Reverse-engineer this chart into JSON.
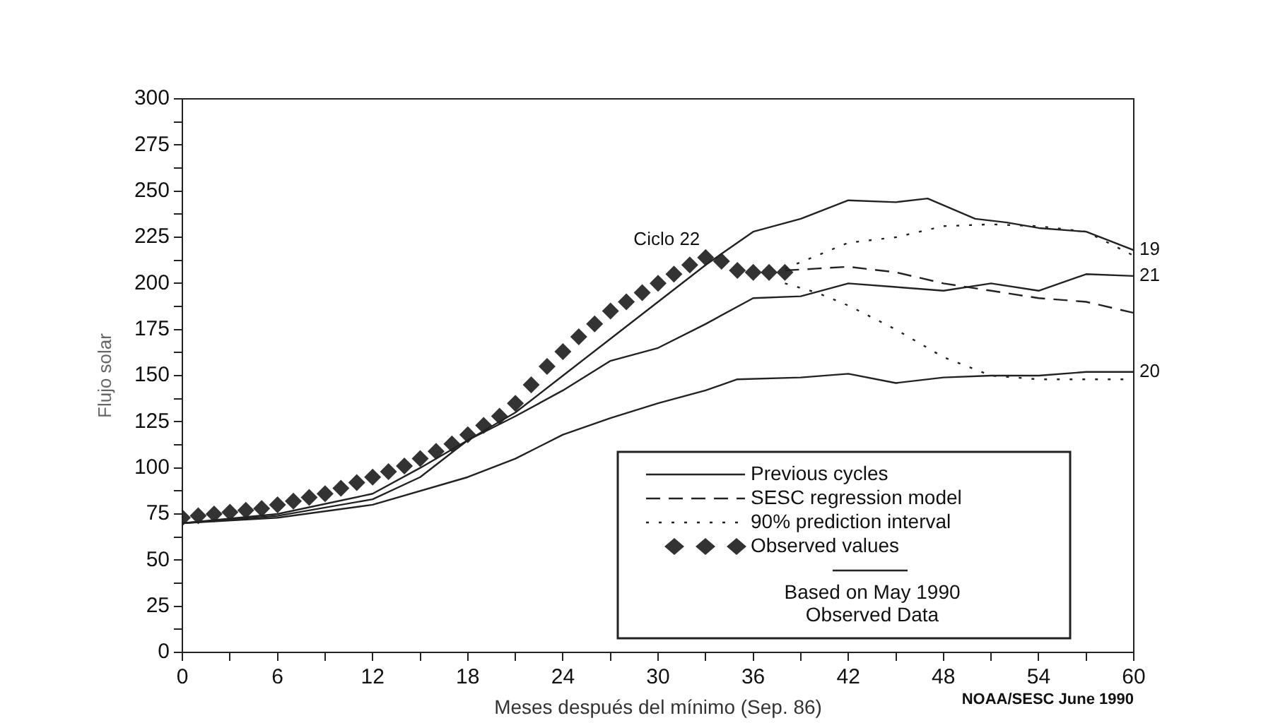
{
  "chart_data": {
    "type": "line",
    "xlabel": "Meses después del mínimo (Sep. 86)",
    "ylabel": "Flujo solar",
    "xlim": [
      0,
      60
    ],
    "ylim": [
      0,
      300
    ],
    "xticks": [
      0,
      {
        "value": 3,
        "label": null
      },
      6,
      {
        "value": 9,
        "label": null
      },
      12,
      {
        "value": 15,
        "label": null
      },
      18,
      {
        "value": 21,
        "label": null
      },
      24,
      {
        "value": 27,
        "label": null
      },
      30,
      {
        "value": 33,
        "label": null
      },
      36,
      {
        "value": 39,
        "label": null
      },
      42,
      {
        "value": 45,
        "label": null
      },
      48,
      {
        "value": 51,
        "label": null
      },
      54,
      {
        "value": 57,
        "label": null
      },
      60
    ],
    "yticks": [
      0,
      {
        "value": 12.5,
        "label": null
      },
      25,
      {
        "value": 37.5,
        "label": null
      },
      50,
      {
        "value": 62.5,
        "label": null
      },
      75,
      {
        "value": 87.5,
        "label": null
      },
      100,
      {
        "value": 112.5,
        "label": null
      },
      125,
      {
        "value": 137.5,
        "label": null
      },
      150,
      {
        "value": 162.5,
        "label": null
      },
      175,
      {
        "value": 187.5,
        "label": null
      },
      200,
      {
        "value": 212.5,
        "label": null
      },
      225,
      {
        "value": 237.5,
        "label": null
      },
      250,
      {
        "value": 262.5,
        "label": null
      },
      275,
      {
        "value": 287.5,
        "label": null
      },
      300
    ],
    "grid": false,
    "legend": "bottom right",
    "annotations": [
      "Previous cycles",
      "Based on May 1990",
      "Observed Data",
      "NOAA/SESC June 1990",
      "Ciclo 22"
    ],
    "series": [
      {
        "name": "19",
        "color": "#222222",
        "line_style": "solid",
        "x": [
          0,
          6,
          12,
          15,
          18,
          21,
          24,
          27,
          30,
          33,
          36,
          39,
          42,
          45,
          47,
          50,
          52,
          54,
          57,
          60
        ],
        "values": [
          70,
          75,
          86,
          100,
          115,
          130,
          150,
          170,
          190,
          210,
          228,
          235,
          245,
          244,
          246,
          235,
          233,
          230,
          228,
          218
        ]
      },
      {
        "name": "21",
        "color": "#222222",
        "line_style": "solid",
        "x": [
          0,
          6,
          12,
          15,
          18,
          21,
          24,
          27,
          30,
          33,
          36,
          39,
          42,
          45,
          48,
          51,
          54,
          57,
          60
        ],
        "values": [
          70,
          74,
          83,
          95,
          115,
          128,
          142,
          158,
          165,
          178,
          192,
          193,
          200,
          198,
          196,
          200,
          196,
          205,
          204
        ]
      },
      {
        "name": "20",
        "color": "#222222",
        "line_style": "solid",
        "x": [
          0,
          6,
          12,
          18,
          21,
          24,
          27,
          30,
          33,
          35,
          39,
          42,
          45,
          48,
          51,
          54,
          57,
          60
        ],
        "values": [
          70,
          73,
          80,
          95,
          105,
          118,
          127,
          135,
          142,
          148,
          149,
          151,
          146,
          149,
          150,
          150,
          152,
          152
        ]
      },
      {
        "name": "SESC regression model",
        "color": "#222222",
        "line_style": "dashed",
        "x": [
          38,
          40,
          42,
          45,
          48,
          51,
          54,
          57,
          60
        ],
        "values": [
          207,
          208,
          209,
          206,
          200,
          196,
          192,
          190,
          184
        ]
      },
      {
        "name": "90% prediction interval",
        "color": "#222222",
        "line_style": "dotted",
        "x": [
          38,
          40,
          42,
          45,
          48,
          51,
          54,
          57,
          60
        ],
        "values": [
          208,
          215,
          222,
          225,
          231,
          232,
          231,
          228,
          215
        ]
      },
      {
        "color": "#222222",
        "line_style": "dotted",
        "x": [
          38,
          40,
          42,
          45,
          48,
          51,
          54,
          57,
          60
        ],
        "values": [
          200,
          195,
          188,
          175,
          160,
          150,
          148,
          148,
          148
        ]
      },
      {
        "name": "Observed values",
        "type": "scatter",
        "marker": "diamond",
        "color": "#333333",
        "x": [
          0,
          1,
          2,
          3,
          4,
          5,
          6,
          7,
          8,
          9,
          10,
          11,
          12,
          13,
          14,
          15,
          16,
          17,
          18,
          19,
          20,
          21,
          22,
          23,
          24,
          25,
          26,
          27,
          28,
          29,
          30,
          31,
          32,
          33,
          34,
          35,
          36,
          37,
          38
        ],
        "values": [
          73,
          74,
          75,
          76,
          77,
          78,
          80,
          82,
          84,
          86,
          89,
          92,
          95,
          98,
          101,
          105,
          109,
          113,
          118,
          123,
          128,
          135,
          145,
          155,
          163,
          171,
          178,
          185,
          190,
          195,
          200,
          205,
          210,
          214,
          212,
          207,
          206,
          206,
          206
        ]
      }
    ]
  }
}
